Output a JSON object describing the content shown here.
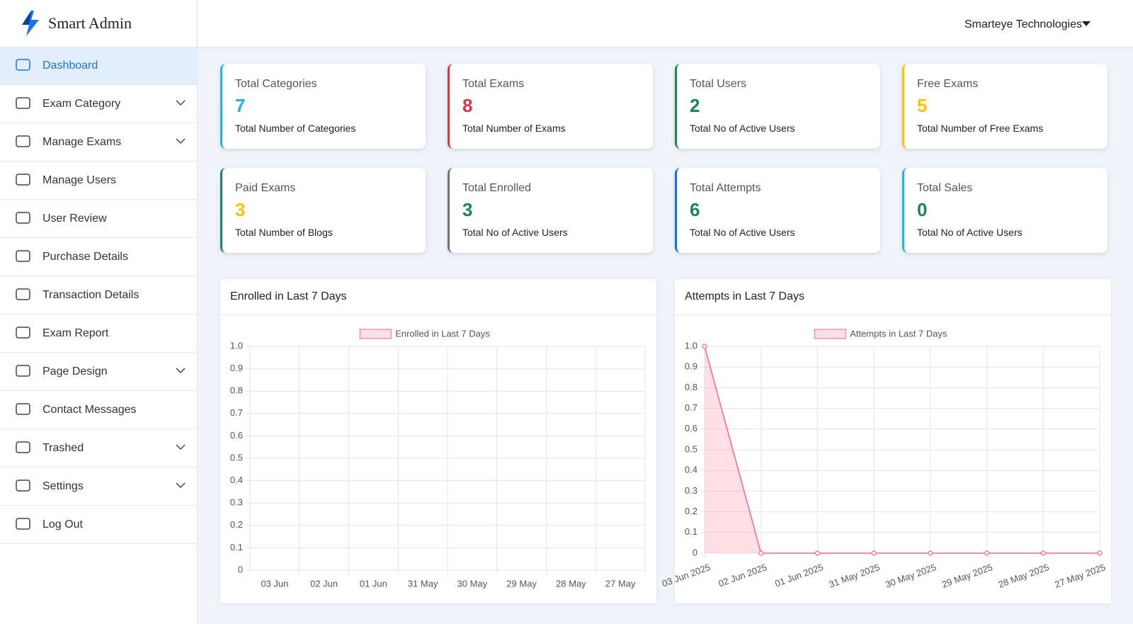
{
  "brand": "Smart Admin",
  "user": "Smarteye Technologies",
  "menu": [
    {
      "label": "Dashboard",
      "active": true
    },
    {
      "label": "Exam Category",
      "submenu": true
    },
    {
      "label": "Manage Exams",
      "submenu": true
    },
    {
      "label": "Manage Users"
    },
    {
      "label": "User Review"
    },
    {
      "label": "Purchase Details"
    },
    {
      "label": "Transaction Details"
    },
    {
      "label": "Exam Report"
    },
    {
      "label": "Page Design",
      "submenu": true
    },
    {
      "label": "Contact Messages"
    },
    {
      "label": "Trashed",
      "submenu": true
    },
    {
      "label": "Settings",
      "submenu": true
    },
    {
      "label": "Log Out"
    }
  ],
  "cards": [
    {
      "title": "Total Categories",
      "value": 7,
      "subtitle": "Total Number of Categories",
      "accent": "#1fb6d8",
      "value_color": "#1fb6d8"
    },
    {
      "title": "Total Exams",
      "value": 8,
      "subtitle": "Total Number of Exams",
      "accent": "#dc3545",
      "value_color": "#dc3545"
    },
    {
      "title": "Total Users",
      "value": 2,
      "subtitle": "Total No of Active Users",
      "accent": "#198754",
      "value_color": "#198754"
    },
    {
      "title": "Free Exams",
      "value": 5,
      "subtitle": "Total Number of Free Exams",
      "accent": "#ffc107",
      "value_color": "#ffc107"
    },
    {
      "title": "Paid Exams",
      "value": 3,
      "subtitle": "Total Number of Blogs",
      "accent": "#198754",
      "value_color": "#ffc107"
    },
    {
      "title": "Total Enrolled",
      "value": 3,
      "subtitle": "Total No of Active Users",
      "accent": "#6c757d",
      "value_color": "#198754"
    },
    {
      "title": "Total Attempts",
      "value": 6,
      "subtitle": "Total No of Active Users",
      "accent": "#0d6efd",
      "value_color": "#198754"
    },
    {
      "title": "Total Sales",
      "value": 0,
      "subtitle": "Total No of Active Users",
      "accent": "#1fb6d8",
      "value_color": "#198754"
    }
  ],
  "chart_data": [
    {
      "type": "line",
      "title": "Enrolled in Last 7 Days",
      "categories": [
        "03 Jun",
        "02 Jun",
        "01 Jun",
        "31 May",
        "30 May",
        "29 May",
        "28 May",
        "27 May"
      ],
      "series": [
        {
          "name": "Enrolled in Last 7 Days",
          "color": "#ff6384",
          "fill": "rgba(255,99,132,0.2)",
          "values": [
            null,
            null,
            null,
            null,
            null,
            null,
            null,
            null
          ]
        }
      ],
      "ylim": [
        0,
        1
      ],
      "yticks": [
        0,
        0.1,
        0.2,
        0.3,
        0.4,
        0.5,
        0.6,
        0.7,
        0.8,
        0.9,
        {
          "value": 1,
          "label": "1.0"
        }
      ],
      "grid": true,
      "offset": true
    },
    {
      "type": "line",
      "title": "Attempts in Last 7 Days",
      "categories": [
        "03 Jun 2025",
        "02 Jun 2025",
        "01 Jun 2025",
        "31 May 2025",
        "30 May 2025",
        "29 May 2025",
        "28 May 2025",
        "27 May 2025"
      ],
      "series": [
        {
          "name": "Attempts in Last 7 Days",
          "color": "#ff6384",
          "fill": "rgba(255,99,132,0.2)",
          "values": [
            1,
            0,
            0,
            0,
            0,
            0,
            0,
            0
          ]
        }
      ],
      "ylim": [
        0,
        1
      ],
      "yticks": [
        0,
        0.1,
        0.2,
        0.3,
        0.4,
        0.5,
        0.6,
        0.7,
        0.8,
        0.9,
        {
          "value": 1,
          "label": "1.0"
        }
      ],
      "grid": true,
      "offset": false
    }
  ]
}
